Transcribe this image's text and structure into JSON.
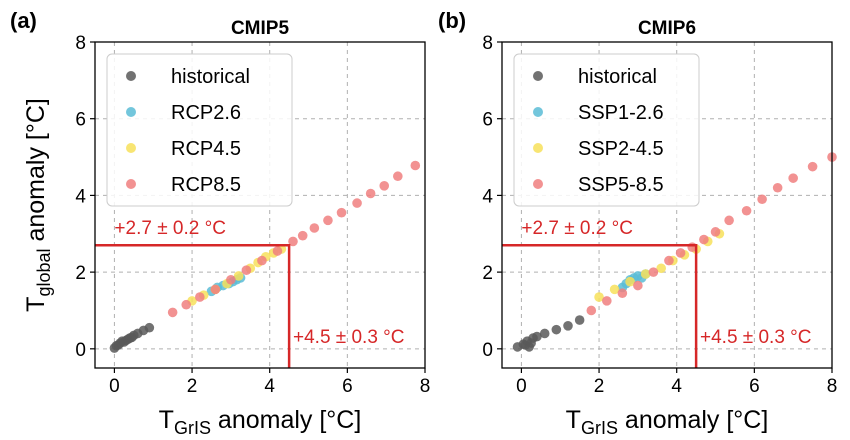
{
  "ylabel": {
    "main": "T",
    "sub": "global",
    "rest": " anomaly [°C]"
  },
  "chart_data": [
    {
      "type": "scatter",
      "panel_label": "(a)",
      "title": "CMIP5",
      "xlabel": {
        "main": "T",
        "sub": "GrIS",
        "rest": " anomaly [°C]"
      },
      "xlim": [
        -0.5,
        8
      ],
      "ylim": [
        -0.5,
        8
      ],
      "xticks": [
        0,
        2,
        4,
        6,
        8
      ],
      "yticks": [
        0,
        2,
        4,
        6,
        8
      ],
      "grid": true,
      "legend_position": "top-left",
      "series": [
        {
          "name": "historical",
          "color": "#595959",
          "x": [
            0,
            0.05,
            0.1,
            0.15,
            0.2,
            0.25,
            0.3,
            0.35,
            0.4,
            0.45,
            0.5,
            0.6,
            0.75,
            0.9
          ],
          "y": [
            0.02,
            0.08,
            0.1,
            0.15,
            0.2,
            0.18,
            0.22,
            0.25,
            0.28,
            0.3,
            0.35,
            0.4,
            0.48,
            0.55
          ]
        },
        {
          "name": "RCP2.6",
          "color": "#5bbcd6",
          "x": [
            2.5,
            2.65,
            2.8,
            2.95,
            3.05,
            3.15,
            3.25
          ],
          "y": [
            1.5,
            1.6,
            1.65,
            1.7,
            1.75,
            1.8,
            1.85
          ]
        },
        {
          "name": "RCP4.5",
          "color": "#f7e05a",
          "x": [
            2.0,
            2.3,
            2.6,
            2.9,
            3.2,
            3.5,
            3.7,
            3.9,
            4.1,
            4.3
          ],
          "y": [
            1.25,
            1.4,
            1.55,
            1.7,
            1.9,
            2.1,
            2.25,
            2.4,
            2.5,
            2.6
          ]
        },
        {
          "name": "RCP8.5",
          "color": "#f07f7f",
          "x": [
            1.5,
            1.85,
            2.2,
            2.6,
            3.0,
            3.4,
            3.8,
            4.2,
            4.6,
            4.85,
            5.15,
            5.5,
            5.85,
            6.25,
            6.6,
            6.95,
            7.3,
            7.75
          ],
          "y": [
            0.95,
            1.15,
            1.35,
            1.55,
            1.8,
            2.05,
            2.3,
            2.55,
            2.8,
            2.95,
            3.15,
            3.35,
            3.55,
            3.8,
            4.05,
            4.25,
            4.5,
            4.78
          ]
        }
      ],
      "threshold": {
        "x": 4.5,
        "y": 2.7,
        "color": "#d62728"
      },
      "annotations": [
        {
          "text": "+2.7 ± 0.2 °C",
          "x": 0,
          "y": 3.0
        },
        {
          "text": "+4.5 ± 0.3 °C",
          "x": 4.6,
          "y": 0.15
        }
      ]
    },
    {
      "type": "scatter",
      "panel_label": "(b)",
      "title": "CMIP6",
      "xlabel": {
        "main": "T",
        "sub": "GrIS",
        "rest": " anomaly [°C]"
      },
      "xlim": [
        -0.5,
        8
      ],
      "ylim": [
        -0.5,
        8
      ],
      "xticks": [
        0,
        2,
        4,
        6,
        8
      ],
      "yticks": [
        0,
        2,
        4,
        6,
        8
      ],
      "grid": true,
      "legend_position": "top-left",
      "series": [
        {
          "name": "historical",
          "color": "#595959",
          "x": [
            -0.1,
            0.05,
            0.1,
            0.15,
            0.2,
            0.25,
            0.3,
            0.4,
            0.6,
            0.9,
            1.2,
            1.5
          ],
          "y": [
            0.05,
            0.12,
            0.1,
            0.2,
            0.05,
            0.15,
            0.28,
            0.32,
            0.4,
            0.5,
            0.6,
            0.75
          ]
        },
        {
          "name": "SSP1-2.6",
          "color": "#5bbcd6",
          "x": [
            2.6,
            2.7,
            2.8,
            2.9,
            3.0,
            3.1,
            3.2
          ],
          "y": [
            1.6,
            1.7,
            1.8,
            1.85,
            1.9,
            1.85,
            1.95
          ]
        },
        {
          "name": "SSP2-4.5",
          "color": "#f7e05a",
          "x": [
            2.0,
            2.4,
            2.8,
            3.2,
            3.6,
            3.9,
            4.2,
            4.5,
            4.8,
            5.1
          ],
          "y": [
            1.35,
            1.55,
            1.75,
            1.95,
            2.1,
            2.3,
            2.45,
            2.6,
            2.8,
            3.0
          ]
        },
        {
          "name": "SSP5-8.5",
          "color": "#f07f7f",
          "x": [
            1.8,
            2.2,
            2.6,
            3.0,
            3.4,
            3.8,
            4.1,
            4.4,
            4.7,
            5.0,
            5.35,
            5.8,
            6.2,
            6.6,
            7.0,
            7.5,
            8.0
          ],
          "y": [
            1.0,
            1.25,
            1.45,
            1.65,
            2.0,
            2.3,
            2.5,
            2.65,
            2.85,
            3.05,
            3.35,
            3.6,
            3.9,
            4.2,
            4.45,
            4.75,
            5.0
          ]
        }
      ],
      "threshold": {
        "x": 4.5,
        "y": 2.7,
        "color": "#d62728"
      },
      "annotations": [
        {
          "text": "+2.7 ± 0.2 °C",
          "x": 0,
          "y": 3.0
        },
        {
          "text": "+4.5 ± 0.3 °C",
          "x": 4.6,
          "y": 0.15
        }
      ]
    }
  ]
}
